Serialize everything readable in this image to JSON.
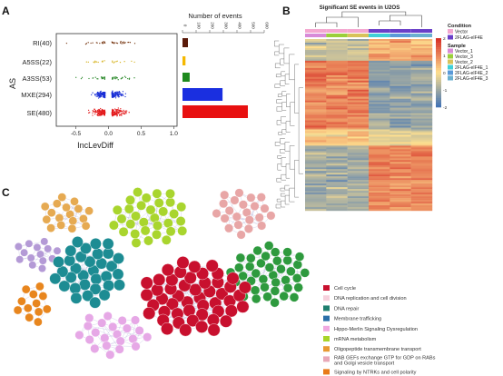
{
  "panels": {
    "a": "A",
    "b": "B",
    "c": "C"
  },
  "chart_data": [
    {
      "type": "scatter",
      "xlabel": "IncLevDiff",
      "ylabel": "AS",
      "xlim": [
        -0.8,
        1.05
      ],
      "x_ticks": [
        "-0.5",
        "0.0",
        "0.5",
        "1.0"
      ],
      "x_tick_values": [
        -0.5,
        0.0,
        0.5,
        1.0
      ],
      "categories": [
        "RI(40)",
        "A5SS(22)",
        "A3SS(53)",
        "MXE(294)",
        "SE(480)"
      ],
      "series": [
        {
          "name": "RI",
          "count": 40,
          "color": "#7a3b17"
        },
        {
          "name": "A5SS",
          "count": 22,
          "color": "#d6b21d"
        },
        {
          "name": "A3SS",
          "count": 53,
          "color": "#2e8b2e"
        },
        {
          "name": "MXE",
          "count": 294,
          "color": "#1a2fd6"
        },
        {
          "name": "SE",
          "count": 480,
          "color": "#e31a1c"
        }
      ]
    },
    {
      "type": "bar",
      "title": "Number of events",
      "orientation": "horizontal",
      "categories": [
        "RI",
        "A5SS",
        "A3SS",
        "MXE",
        "SE"
      ],
      "values": [
        40,
        22,
        53,
        294,
        480
      ],
      "colors": [
        "#5a1a0a",
        "#f5b800",
        "#1e8a1e",
        "#1a2fe0",
        "#e81010"
      ],
      "xlim": [
        0,
        600
      ],
      "x_ticks": [
        "0",
        "100",
        "200",
        "300",
        "400",
        "500",
        "600"
      ]
    },
    {
      "type": "heatmap",
      "title": "Significant SE events  in U2OS",
      "columns": [
        "Vector_1",
        "Vector_3",
        "Vector_2",
        "2FLAG-eIF4E_1",
        "2FLAG-eIF4E_2",
        "2FLAG-eIF4E_3"
      ],
      "condition_legend_title": "Condition",
      "conditions": [
        {
          "label": "Vector",
          "color": "#f4a7d0"
        },
        {
          "label": "2FLAG-eIF4E",
          "color": "#6a3fc8"
        }
      ],
      "sample_legend_title": "Sample",
      "samples": [
        {
          "label": "Vector_1",
          "color": "#d88ad8"
        },
        {
          "label": "Vector_3",
          "color": "#9bcf3a"
        },
        {
          "label": "Vector_2",
          "color": "#d8c25a"
        },
        {
          "label": "2FLAG-eIF4E_1",
          "color": "#3fd0d8"
        },
        {
          "label": "2FLAG-eIF4E_2",
          "color": "#5a9ad8"
        },
        {
          "label": "2FLAG-eIF4E_3",
          "color": "#6ab0d0"
        }
      ],
      "scale_ticks": [
        "2",
        "1",
        "0",
        "-1",
        "-2"
      ],
      "scale_range": [
        -2,
        2
      ],
      "scale_colors": [
        "#d73027",
        "#fee090",
        "#4575b4"
      ]
    },
    {
      "type": "network",
      "legend": [
        {
          "label": "Cell cycle",
          "color": "#c8102e"
        },
        {
          "label": "DNA replication and cell division",
          "color": "#f6d0dc"
        },
        {
          "label": "DNA repair",
          "color": "#1f7f6f"
        },
        {
          "label": "Membrane trafficking",
          "color": "#2a6fa8"
        },
        {
          "label": "Hippo-Merlin Signaling Dysregulation",
          "color": "#f0a8e0"
        },
        {
          "label": "mRNA metabolism",
          "color": "#a8d42a"
        },
        {
          "label": "Oligopeptide transmembrane transport",
          "color": "#e89a32"
        },
        {
          "label": "RAB GEFs exchange GTP for GDP on RABs and Golgi vesicle transport",
          "color": "#e8a8b8"
        },
        {
          "label": "Signaling by NTRKs and cell polarity",
          "color": "#e87a18"
        }
      ],
      "clusters": [
        {
          "name": "Oligopeptide transmembrane transport",
          "color": "#e6aa52",
          "size": 17
        },
        {
          "name": "mRNA metabolism",
          "color": "#a9d52e",
          "size": 32
        },
        {
          "name": "RAB GEFs exchange GTP for GDP on RABs and Golgi vesicle transport",
          "color": "#e8a6a6",
          "size": 22
        },
        {
          "name": "Membrane trafficking",
          "color": "#b49ad6",
          "size": 14
        },
        {
          "name": "DNA repair",
          "color": "#1d8c93",
          "size": 33
        },
        {
          "name": "Cell cycle",
          "color": "#2e9a3e",
          "size": 40
        },
        {
          "name": "Cell cycle",
          "color": "#c8102e",
          "size": 50
        },
        {
          "name": "Signaling by NTRKs and cell polarity",
          "color": "#e8861e",
          "size": 12
        },
        {
          "name": "Hippo-Merlin Signaling Dysregulation",
          "color": "#e6a8e6",
          "size": 22
        }
      ]
    }
  ]
}
